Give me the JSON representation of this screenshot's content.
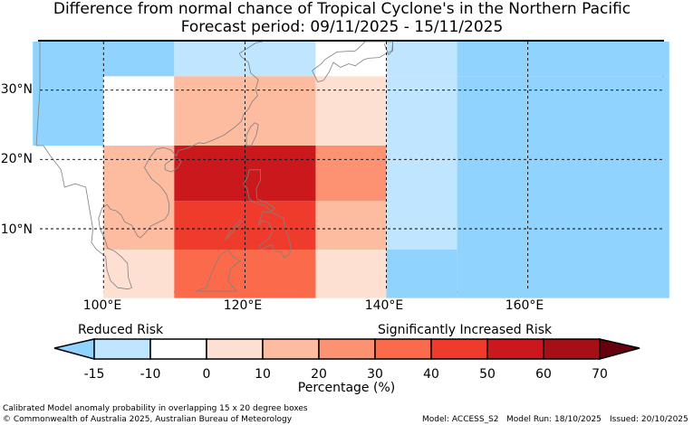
{
  "title": {
    "line1": "Difference from normal chance of Tropical Cyclone's in the Northern Pacific",
    "line2": "Forecast period: 09/11/2025 - 15/11/2025"
  },
  "map": {
    "lat_labels": [
      "30°N",
      "20°N",
      "10°N"
    ],
    "lon_labels": [
      "100°E",
      "120°E",
      "140°E",
      "160°E"
    ],
    "grid_lat": [
      30,
      20,
      10
    ],
    "grid_lon": [
      100,
      120,
      140,
      160
    ],
    "extent": {
      "lon_min": 91,
      "lon_max": 179,
      "lat_min": 1,
      "lat_max": 37
    },
    "cells": [
      {
        "lon0": 90,
        "lon1": 110,
        "lat0": 22,
        "lat1": 37,
        "color": "#8fd3fe"
      },
      {
        "lon0": 110,
        "lon1": 130,
        "lat0": 32,
        "lat1": 37,
        "color": "#bfe6fe"
      },
      {
        "lon0": 130,
        "lon1": 140,
        "lat0": 32,
        "lat1": 37,
        "color": "#ffffff"
      },
      {
        "lon0": 140,
        "lon1": 150,
        "lat0": 32,
        "lat1": 37,
        "color": "#bfe6fe"
      },
      {
        "lon0": 150,
        "lon1": 180,
        "lat0": 32,
        "lat1": 37,
        "color": "#8fd3fe"
      },
      {
        "lon0": 100,
        "lon1": 110,
        "lat0": 22,
        "lat1": 32,
        "color": "#ffffff"
      },
      {
        "lon0": 110,
        "lon1": 130,
        "lat0": 22,
        "lat1": 32,
        "color": "#fdbba0"
      },
      {
        "lon0": 130,
        "lon1": 140,
        "lat0": 22,
        "lat1": 32,
        "color": "#fee0d2"
      },
      {
        "lon0": 140,
        "lon1": 150,
        "lat0": 22,
        "lat1": 32,
        "color": "#bfe6fe"
      },
      {
        "lon0": 150,
        "lon1": 180,
        "lat0": 22,
        "lat1": 32,
        "color": "#8fd3fe"
      },
      {
        "lon0": 90,
        "lon1": 100,
        "lat0": 0,
        "lat1": 22,
        "color": "#ffffff"
      },
      {
        "lon0": 100,
        "lon1": 110,
        "lat0": 7,
        "lat1": 22,
        "color": "#fdbba0"
      },
      {
        "lon0": 110,
        "lon1": 130,
        "lat0": 14,
        "lat1": 22,
        "color": "#cb181d"
      },
      {
        "lon0": 130,
        "lon1": 140,
        "lat0": 14,
        "lat1": 22,
        "color": "#fc9272"
      },
      {
        "lon0": 110,
        "lon1": 130,
        "lat0": 7,
        "lat1": 14,
        "color": "#ef3b2c"
      },
      {
        "lon0": 130,
        "lon1": 140,
        "lat0": 7,
        "lat1": 14,
        "color": "#fdbba0"
      },
      {
        "lon0": 140,
        "lon1": 150,
        "lat0": 7,
        "lat1": 22,
        "color": "#bfe6fe"
      },
      {
        "lon0": 150,
        "lon1": 180,
        "lat0": 0,
        "lat1": 22,
        "color": "#8fd3fe"
      },
      {
        "lon0": 100,
        "lon1": 110,
        "lat0": 0,
        "lat1": 7,
        "color": "#fee0d2"
      },
      {
        "lon0": 110,
        "lon1": 130,
        "lat0": 0,
        "lat1": 7,
        "color": "#fb6a4a"
      },
      {
        "lon0": 130,
        "lon1": 140,
        "lat0": 0,
        "lat1": 7,
        "color": "#fee0d2"
      },
      {
        "lon0": 140,
        "lon1": 150,
        "lat0": 0,
        "lat1": 7,
        "color": "#8fd3fe"
      }
    ],
    "coastlines": [
      [
        [
          91,
          37
        ],
        [
          91,
          30
        ],
        [
          90.5,
          22
        ],
        [
          91.5,
          22
        ],
        [
          92.5,
          20.5
        ],
        [
          94,
          18.5
        ],
        [
          94.5,
          16
        ],
        [
          96,
          16.5
        ],
        [
          97.5,
          16
        ],
        [
          98,
          13
        ],
        [
          98.5,
          10
        ],
        [
          98.3,
          8
        ],
        [
          99,
          7
        ],
        [
          100.3,
          6
        ],
        [
          100.5,
          4
        ],
        [
          101,
          2.5
        ],
        [
          102,
          1.5
        ],
        [
          103.5,
          1.3
        ],
        [
          104,
          1.5
        ],
        [
          103.5,
          3
        ],
        [
          103.4,
          5
        ],
        [
          102.5,
          6
        ],
        [
          101.5,
          6.8
        ],
        [
          100.6,
          7.2
        ],
        [
          100.2,
          8.5
        ],
        [
          99.5,
          10
        ],
        [
          99.3,
          11.5
        ],
        [
          99.8,
          13
        ],
        [
          100.5,
          13.5
        ],
        [
          101,
          12.8
        ],
        [
          101.8,
          12.6
        ],
        [
          102.5,
          12
        ],
        [
          103,
          11
        ],
        [
          104,
          10.5
        ],
        [
          104.8,
          9
        ],
        [
          105.2,
          8.7
        ],
        [
          106,
          9.5
        ],
        [
          106.7,
          10.4
        ],
        [
          107.5,
          10.8
        ],
        [
          108.7,
          11.4
        ],
        [
          109.2,
          12.2
        ],
        [
          109.3,
          13.5
        ],
        [
          108.9,
          15
        ],
        [
          108,
          16.2
        ],
        [
          106.8,
          17.2
        ],
        [
          105.8,
          18.8
        ],
        [
          106.5,
          20.2
        ],
        [
          107.5,
          21.5
        ],
        [
          108.5,
          21.7
        ],
        [
          109.5,
          21.4
        ],
        [
          110.3,
          20.5
        ],
        [
          110.6,
          21.3
        ],
        [
          111.8,
          21.6
        ],
        [
          113.5,
          22.4
        ],
        [
          114.2,
          22.3
        ],
        [
          115.5,
          22.8
        ],
        [
          117,
          23.5
        ],
        [
          118.5,
          24.6
        ],
        [
          119.5,
          25.5
        ],
        [
          119.8,
          26.5
        ],
        [
          120.5,
          27.3
        ],
        [
          121,
          28.3
        ],
        [
          121.8,
          29.2
        ],
        [
          121.5,
          30.1
        ],
        [
          121.9,
          31.5
        ],
        [
          120.8,
          32.5
        ],
        [
          120.5,
          34
        ],
        [
          119.5,
          34.8
        ],
        [
          119.2,
          35.3
        ],
        [
          120.3,
          36
        ],
        [
          121.5,
          36.8
        ],
        [
          122.5,
          37
        ]
      ],
      [
        [
          108.7,
          18.5
        ],
        [
          109.6,
          18.2
        ],
        [
          110.5,
          18.8
        ],
        [
          111,
          19.7
        ],
        [
          110.5,
          20.1
        ],
        [
          109.7,
          20
        ],
        [
          108.7,
          19.3
        ],
        [
          108.7,
          18.5
        ]
      ],
      [
        [
          120.2,
          22
        ],
        [
          120.9,
          22
        ],
        [
          121.6,
          23.5
        ],
        [
          121.9,
          25
        ],
        [
          121.4,
          25.3
        ],
        [
          120.8,
          24.7
        ],
        [
          120.2,
          23.5
        ],
        [
          120.2,
          22
        ]
      ],
      [
        [
          120.6,
          18.5
        ],
        [
          122.2,
          18.5
        ],
        [
          122.2,
          17
        ],
        [
          121.6,
          15.8
        ],
        [
          121.7,
          14.3
        ],
        [
          123,
          13.8
        ],
        [
          124.2,
          13
        ],
        [
          123.8,
          12.5
        ],
        [
          122.7,
          13.4
        ],
        [
          121.5,
          13.7
        ],
        [
          120.6,
          14.3
        ],
        [
          120.3,
          15.9
        ],
        [
          119.8,
          16.4
        ],
        [
          120.4,
          17.5
        ],
        [
          120.6,
          18.5
        ]
      ],
      [
        [
          122.5,
          12.5
        ],
        [
          124,
          12.3
        ],
        [
          125.5,
          11.5
        ],
        [
          125.7,
          10
        ],
        [
          126,
          9.2
        ],
        [
          126.5,
          7.5
        ],
        [
          126.3,
          6.3
        ],
        [
          125.5,
          5.8
        ],
        [
          125.2,
          6.6
        ],
        [
          124.2,
          6.9
        ],
        [
          123.8,
          7.7
        ],
        [
          122.2,
          7
        ],
        [
          122,
          7.5
        ],
        [
          123.3,
          8.5
        ],
        [
          123.8,
          9.4
        ],
        [
          123.5,
          10.8
        ],
        [
          122.5,
          11.2
        ],
        [
          121.9,
          10.5
        ],
        [
          122.5,
          12.5
        ]
      ],
      [
        [
          117.2,
          8.4
        ],
        [
          118.3,
          9.5
        ],
        [
          119.5,
          11
        ],
        [
          119.3,
          11.3
        ],
        [
          118.2,
          10
        ],
        [
          117.2,
          8.4
        ]
      ],
      [
        [
          113,
          1
        ],
        [
          114.5,
          1.5
        ],
        [
          115.8,
          4.8
        ],
        [
          116.5,
          6.2
        ],
        [
          117.7,
          7
        ],
        [
          118.3,
          6
        ],
        [
          119.3,
          5.3
        ],
        [
          118,
          4.3
        ],
        [
          117.6,
          2.5
        ],
        [
          118.8,
          1
        ],
        [
          113,
          1
        ]
      ],
      [
        [
          129.5,
          32.8
        ],
        [
          130.3,
          31.2
        ],
        [
          131.1,
          31.4
        ],
        [
          131.9,
          32.6
        ],
        [
          132.5,
          34
        ],
        [
          133.5,
          33.3
        ],
        [
          134.7,
          33.8
        ],
        [
          135.6,
          33.5
        ],
        [
          136.8,
          34.4
        ],
        [
          137.5,
          34.6
        ],
        [
          139,
          34.7
        ],
        [
          139.8,
          35.2
        ],
        [
          140.8,
          35.7
        ],
        [
          140.9,
          37
        ],
        [
          139.5,
          37
        ],
        [
          138.5,
          37
        ],
        [
          137,
          37
        ],
        [
          136,
          36
        ],
        [
          135.5,
          35.6
        ],
        [
          134.5,
          35.6
        ],
        [
          133,
          35.5
        ],
        [
          131.3,
          34.4
        ],
        [
          130.9,
          33.9
        ],
        [
          129.5,
          32.8
        ]
      ],
      [
        [
          139.7,
          36.7
        ],
        [
          140.3,
          35.1
        ],
        [
          140.9,
          35.7
        ],
        [
          140.9,
          37
        ]
      ]
    ]
  },
  "colorbar": {
    "reduced_label": "Reduced Risk",
    "increased_label": "Significantly Increased Risk",
    "axis_label": "Percentage (%)",
    "tick_labels": [
      "-15",
      "-10",
      "0",
      "10",
      "20",
      "30",
      "40",
      "50",
      "60",
      "70"
    ],
    "colors": [
      "#8fd3fe",
      "#bfe6fe",
      "#ffffff",
      "#fee0d2",
      "#fdbba0",
      "#fc9272",
      "#fb6a4a",
      "#ef3b2c",
      "#cb181d",
      "#a50f15",
      "#67000d"
    ]
  },
  "footer": {
    "note": "Calibrated Model anomaly probability in overlapping 15 x 20 degree boxes",
    "copyright": "© Commonwealth of Australia 2025, Australian Bureau of Meteorology",
    "model": "Model: ACCESS_S2",
    "model_run": "Model Run: 18/10/2025",
    "issued": "Issued: 20/10/2025"
  }
}
